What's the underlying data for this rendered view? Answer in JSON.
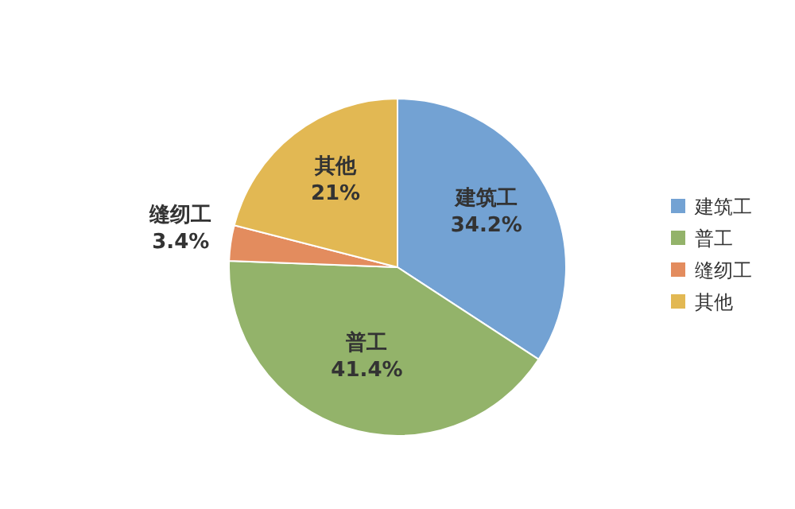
{
  "chart_data": {
    "type": "pie",
    "categories": [
      "建筑工",
      "普工",
      "缝纫工",
      "其他"
    ],
    "values": [
      34.2,
      41.4,
      3.4,
      21
    ],
    "colors": [
      "#73a2d3",
      "#93b36a",
      "#e38c5e",
      "#e2b853"
    ],
    "value_labels": [
      "34.2%",
      "41.4%",
      "3.4%",
      "21%"
    ],
    "legend": "right"
  }
}
